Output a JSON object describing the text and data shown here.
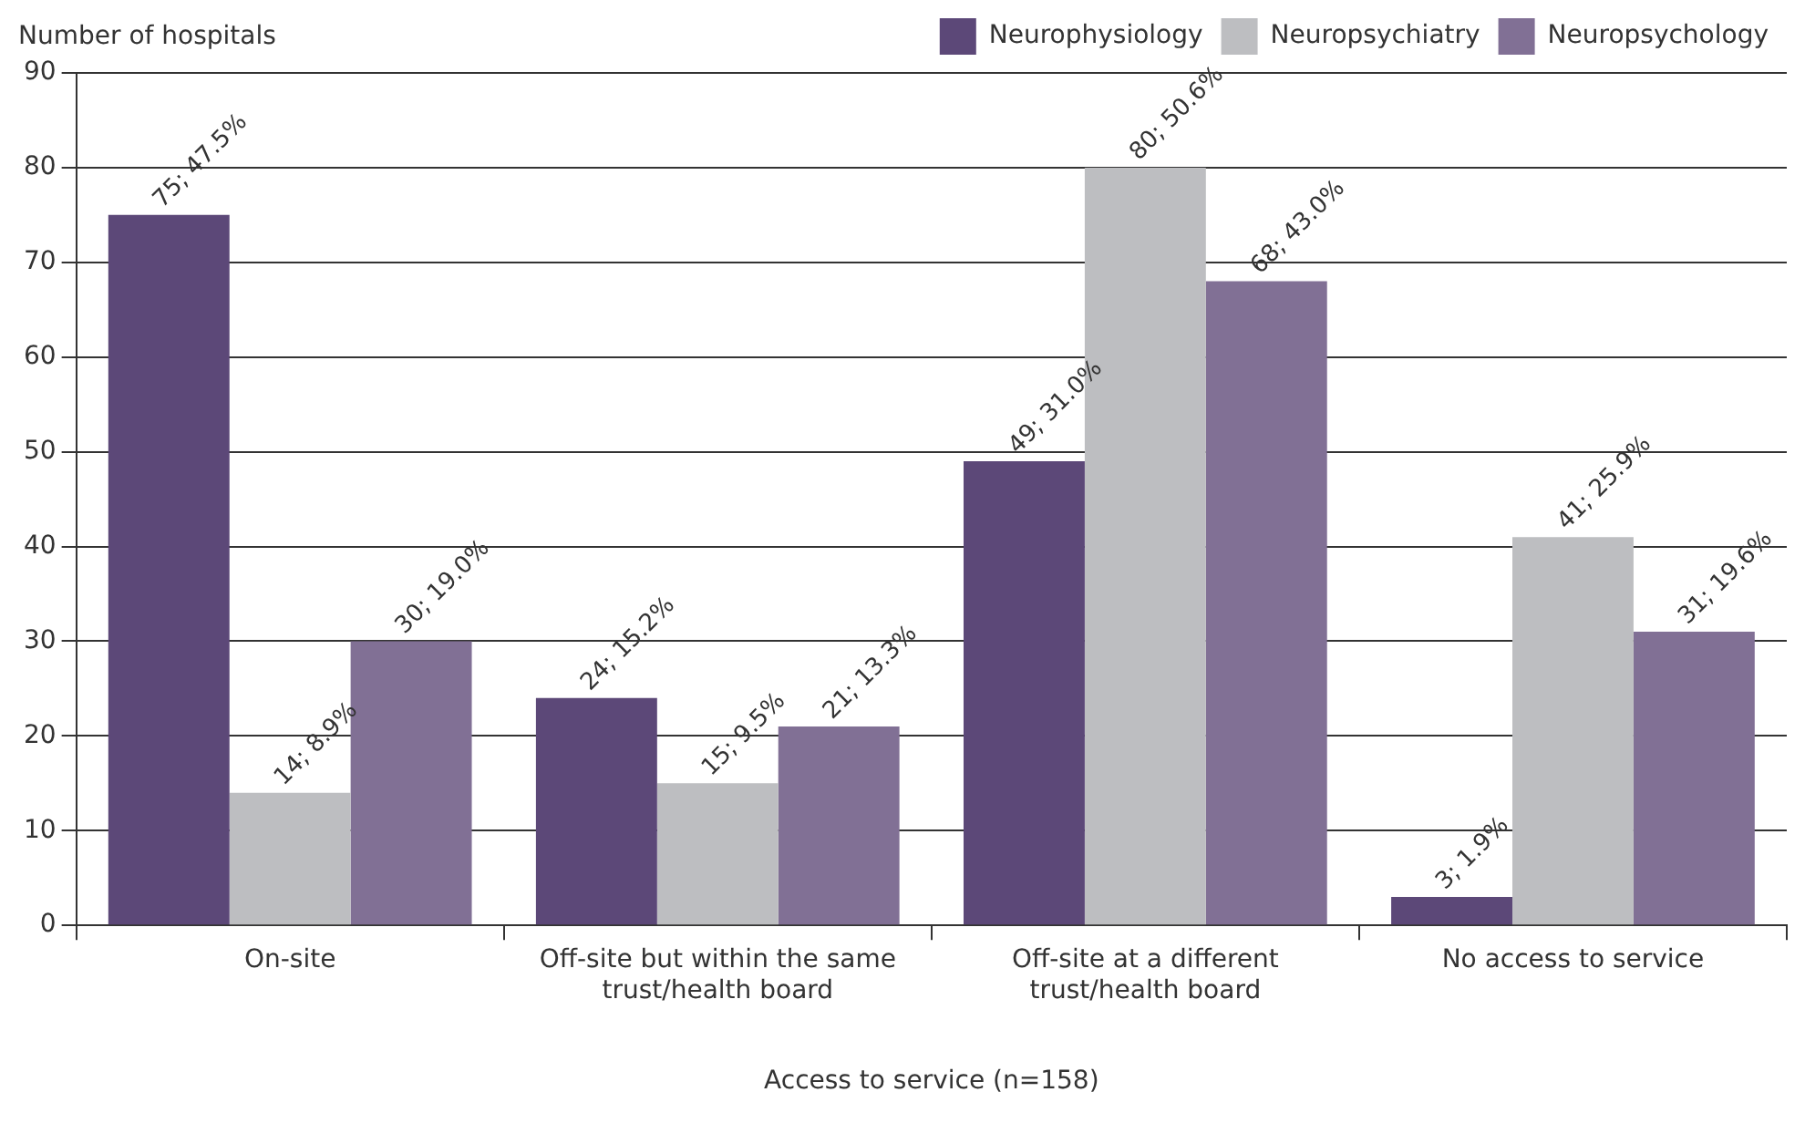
{
  "chart_data": {
    "type": "bar",
    "ylabel": "Number of hospitals",
    "xlabel": "Access to service (n=158)",
    "categories": [
      "On-site",
      "Off-site but within the same trust/health board",
      "Off-site at a different trust/health board",
      "No access to service"
    ],
    "series": [
      {
        "name": "Neurophysiology",
        "color": "#5c4878",
        "values": [
          75,
          24,
          49,
          3
        ],
        "value_labels": [
          "75; 47.5%",
          "24; 15.2%",
          "49; 31.0%",
          "3; 1.9%"
        ]
      },
      {
        "name": "Neuropsychiatry",
        "color": "#bdbec1",
        "values": [
          14,
          15,
          80,
          41
        ],
        "value_labels": [
          "14; 8.9%",
          "15; 9.5%",
          "80; 50.6%",
          "41; 25.9%"
        ]
      },
      {
        "name": "Neuropsychology",
        "color": "#817095",
        "values": [
          30,
          21,
          68,
          31
        ],
        "value_labels": [
          "30; 19.0%",
          "21; 13.3%",
          "68; 43.0%",
          "31; 19.6%"
        ]
      }
    ],
    "ylim": [
      0,
      90
    ],
    "yticks": [
      0,
      10,
      20,
      30,
      40,
      50,
      60,
      70,
      80,
      90
    ],
    "grid": "y",
    "legend": "top right"
  }
}
